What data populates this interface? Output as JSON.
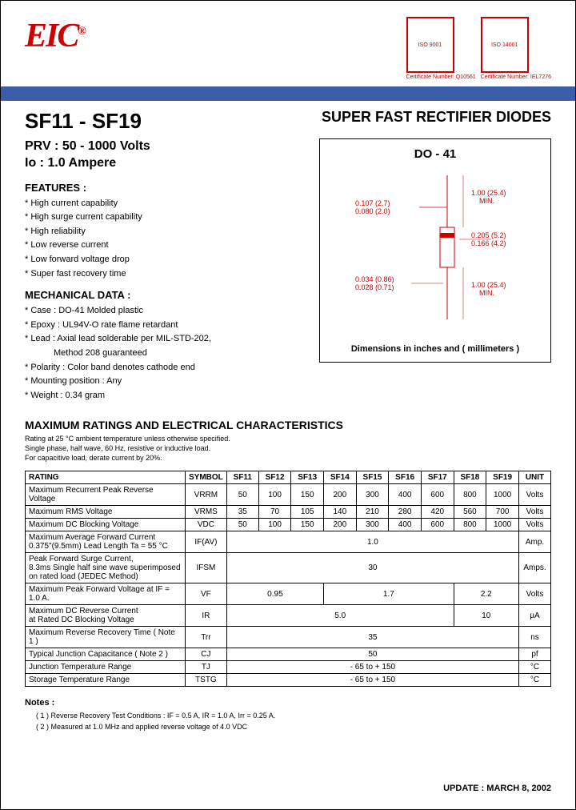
{
  "header": {
    "logo": "EIC",
    "cert1_label": "ISO 9001",
    "cert1_num": "Certificate Number: Q10561",
    "cert2_label": "ISO 14001",
    "cert2_num": "Certificate Number: IEL7276"
  },
  "title": {
    "part": "SF11 - SF19",
    "main": "SUPER FAST RECTIFIER DIODES",
    "prv": "PRV : 50 - 1000 Volts",
    "io": "Io : 1.0 Ampere"
  },
  "features": {
    "head": "FEATURES :",
    "items": [
      "High current capability",
      "High surge current capability",
      "High reliability",
      "Low reverse current",
      "Low forward voltage drop",
      "Super fast recovery time"
    ]
  },
  "mechanical": {
    "head": "MECHANICAL DATA :",
    "items": [
      "Case : DO-41  Molded plastic",
      "Epoxy : UL94V-O rate flame retardant",
      "Lead : Axial lead solderable per MIL-STD-202,",
      "Polarity : Color band denotes cathode end",
      "Mounting  position : Any",
      "Weight : 0.34 gram"
    ],
    "indent": "Method 208 guaranteed"
  },
  "diagram": {
    "title": "DO - 41",
    "caption": "Dimensions in inches and ( millimeters )",
    "dims": {
      "lead_dia_max": "0.107 (2.7)",
      "lead_dia_min": "0.080 (2.0)",
      "lead_len": "1.00 (25.4)",
      "lead_len_sub": "MIN.",
      "body_dia_max": "0.205 (5.2)",
      "body_dia_min": "0.166 (4.2)",
      "body_len_max": "0.034 (0.86)",
      "body_len_min": "0.028 (0.71)"
    }
  },
  "ratings": {
    "head": "MAXIMUM RATINGS AND ELECTRICAL CHARACTERISTICS",
    "sub1": "Rating at 25 °C ambient temperature unless otherwise specified.",
    "sub2": "Single phase, half wave, 60 Hz, resistive or inductive load.",
    "sub3": "For capacitive load, derate current by 20%.",
    "cols": [
      "RATING",
      "SYMBOL",
      "SF11",
      "SF12",
      "SF13",
      "SF14",
      "SF15",
      "SF16",
      "SF17",
      "SF18",
      "SF19",
      "UNIT"
    ],
    "rows": [
      {
        "r": "Maximum Recurrent Peak Reverse Voltage",
        "s": "VRRM",
        "v": [
          "50",
          "100",
          "150",
          "200",
          "300",
          "400",
          "600",
          "800",
          "1000"
        ],
        "u": "Volts"
      },
      {
        "r": "Maximum RMS Voltage",
        "s": "VRMS",
        "v": [
          "35",
          "70",
          "105",
          "140",
          "210",
          "280",
          "420",
          "560",
          "700"
        ],
        "u": "Volts"
      },
      {
        "r": "Maximum DC Blocking Voltage",
        "s": "VDC",
        "v": [
          "50",
          "100",
          "150",
          "200",
          "300",
          "400",
          "600",
          "800",
          "1000"
        ],
        "u": "Volts"
      }
    ],
    "span_rows": [
      {
        "r": "Maximum Average Forward Current\n0.375\"(9.5mm) Lead Length        Ta = 55 °C",
        "s": "IF(AV)",
        "val": "1.0",
        "u": "Amp."
      },
      {
        "r": "Peak Forward Surge Current,\n8.3ms Single half sine wave superimposed\non rated load (JEDEC Method)",
        "s": "IFSM",
        "val": "30",
        "u": "Amps."
      }
    ],
    "vf_row": {
      "r": "Maximum Peak Forward Voltage at IF = 1.0 A.",
      "s": "VF",
      "v1": "0.95",
      "v2": "1.7",
      "v3": "2.2",
      "u": "Volts"
    },
    "ir_row": {
      "r": "Maximum DC Reverse Current\nat Rated DC Blocking Voltage",
      "s": "IR",
      "v1": "5.0",
      "v2": "10",
      "u": "μA"
    },
    "simple_rows": [
      {
        "r": "Maximum Reverse Recovery Time ( Note 1 )",
        "s": "Trr",
        "val": "35",
        "u": "ns"
      },
      {
        "r": "Typical Junction Capacitance  ( Note 2 )",
        "s": "CJ",
        "val": "50",
        "u": "pf"
      },
      {
        "r": "Junction Temperature Range",
        "s": "TJ",
        "val": "- 65 to + 150",
        "u": "°C"
      },
      {
        "r": "Storage Temperature Range",
        "s": "TSTG",
        "val": "- 65 to + 150",
        "u": "°C"
      }
    ]
  },
  "notes": {
    "head": "Notes :",
    "n1": "( 1 ) Reverse Recovery Test Conditions : IF = 0.5 A, IR = 1.0 A, Irr = 0.25 A.",
    "n2": "( 2 ) Measured at 1.0 MHz and applied reverse voltage of 4.0 VDC"
  },
  "update": "UPDATE : MARCH 8, 2002"
}
